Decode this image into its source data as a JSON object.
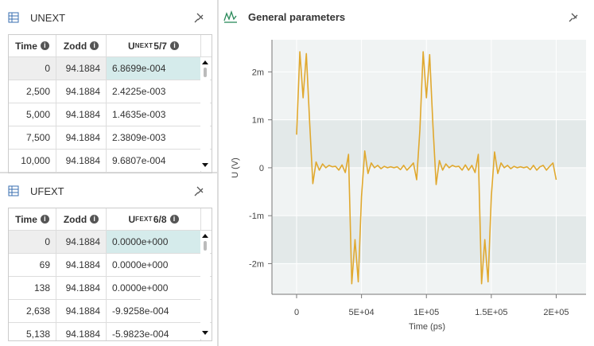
{
  "panels": [
    {
      "title": "UNEXT",
      "table": {
        "columns": [
          "Time",
          "Zodd",
          {
            "main": "U",
            "sub": "NEXT",
            "suffix": "5/7"
          }
        ],
        "rows": [
          [
            "0",
            "94.1884",
            "6.8699e-004"
          ],
          [
            "2,500",
            "94.1884",
            "2.4225e-003"
          ],
          [
            "5,000",
            "94.1884",
            "1.4635e-003"
          ],
          [
            "7,500",
            "94.1884",
            "2.3809e-003"
          ],
          [
            "10,000",
            "94.1884",
            "9.6807e-004"
          ]
        ]
      }
    },
    {
      "title": "UFEXT",
      "table": {
        "columns": [
          "Time",
          "Zodd",
          {
            "main": "U",
            "sub": "FEXT",
            "suffix": "6/8"
          }
        ],
        "rows": [
          [
            "0",
            "94.1884",
            "0.0000e+000"
          ],
          [
            "69",
            "94.1884",
            "0.0000e+000"
          ],
          [
            "138",
            "94.1884",
            "0.0000e+000"
          ],
          [
            "2,638",
            "94.1884",
            "-9.9258e-004"
          ],
          [
            "5,138",
            "94.1884",
            "-5.9823e-004"
          ]
        ]
      }
    }
  ],
  "chart_data": {
    "type": "line",
    "title": "General parameters",
    "x_label": "Time (ps)",
    "y_label": "U (V)",
    "color": "#e0a82e",
    "grid": true,
    "x": [
      0,
      2500,
      5000,
      7500,
      10000,
      12500,
      15000,
      17500,
      20000,
      22500,
      25000,
      27500,
      30000,
      32500,
      35000,
      37500,
      40000,
      42500,
      45000,
      47500,
      50000,
      52500,
      55000,
      57500,
      60000,
      62500,
      65000,
      67500,
      70000,
      72500,
      75000,
      77500,
      80000,
      82500,
      85000,
      87500,
      90000,
      92500,
      95000,
      97500,
      100000,
      102500,
      105000,
      107500,
      110000,
      112500,
      115000,
      117500,
      120000,
      122500,
      125000,
      127500,
      130000,
      132500,
      135000,
      137500,
      140000,
      142500,
      145000,
      147500,
      150000,
      152500,
      155000,
      157500,
      160000,
      162500,
      165000,
      167500,
      170000,
      172500,
      175000,
      177500,
      180000,
      182500,
      185000,
      187500,
      190000,
      192500,
      195000,
      197500,
      200000
    ],
    "values": [
      0.00069,
      0.00242,
      0.00146,
      0.00238,
      0.00097,
      -0.00033,
      0.00012,
      -5e-05,
      8e-05,
      0.0,
      5e-05,
      2e-05,
      3e-05,
      -5e-05,
      6e-05,
      -0.0001,
      0.00028,
      -0.00242,
      -0.0015,
      -0.00238,
      -0.0006,
      0.00035,
      -0.00012,
      0.0001,
      0.0,
      5e-05,
      -2e-05,
      3e-05,
      0.0,
      2e-05,
      0.0,
      2e-05,
      -4e-05,
      5e-05,
      -5e-05,
      2e-05,
      0.0001,
      -0.00025,
      0.0008,
      0.00242,
      0.00146,
      0.00236,
      0.0009,
      -0.00035,
      0.00015,
      -5e-05,
      8e-05,
      0.0,
      5e-05,
      2e-05,
      3e-05,
      -5e-05,
      6e-05,
      -5e-05,
      5e-05,
      -0.0001,
      0.00028,
      -0.00242,
      -0.0015,
      -0.00238,
      -0.0006,
      0.00033,
      -0.00012,
      0.0001,
      0.0,
      5e-05,
      -2e-05,
      3e-05,
      0.0,
      2e-05,
      0.0,
      2e-05,
      -4e-05,
      5e-05,
      -5e-05,
      2e-05,
      5e-05,
      -5e-05,
      3e-05,
      0.0001,
      -0.00025
    ],
    "xlim": [
      -19000,
      223000
    ],
    "ylim": [
      -0.00264,
      0.00267
    ],
    "xticks": [
      0,
      {
        "value": 50000,
        "label": "5E+04"
      },
      {
        "value": 100000,
        "label": "1E+05"
      },
      {
        "value": 150000,
        "label": "1.5E+05"
      },
      {
        "value": 200000,
        "label": "2E+05"
      }
    ],
    "yticks": [
      {
        "value": -0.002,
        "label": "-2m"
      },
      {
        "value": -0.001,
        "label": "-1m"
      },
      0,
      {
        "value": 0.001,
        "label": "1m"
      },
      {
        "value": 0.002,
        "label": "2m"
      }
    ]
  }
}
